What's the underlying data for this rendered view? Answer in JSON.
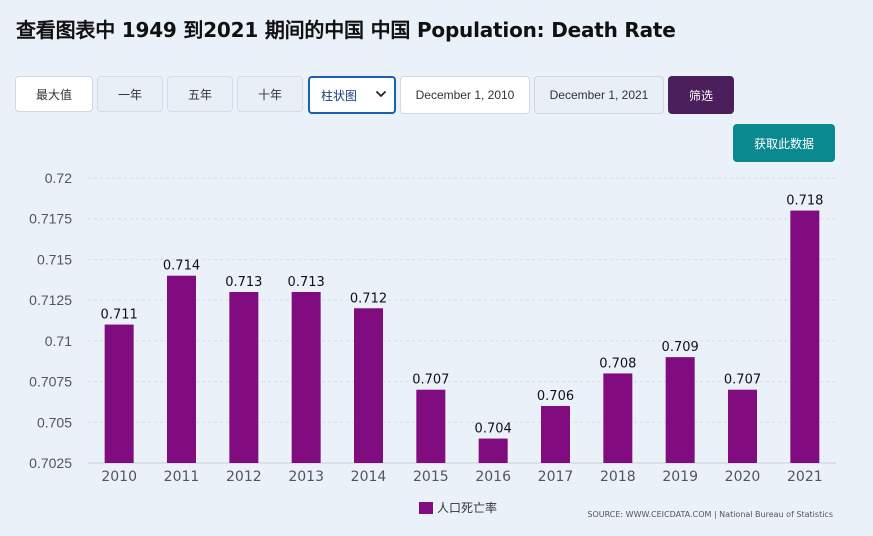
{
  "title": "查看图表中 1949 到2021 期间的中国 中国 Population: Death Rate",
  "toolbar": {
    "range_buttons": [
      "最大值",
      "一年",
      "五年",
      "十年"
    ],
    "chart_type": "柱状图",
    "start_date": "December 1, 2010",
    "end_date": "December 1, 2021",
    "filter_label": "筛选",
    "get_data_label": "获取此数据"
  },
  "legend_label": "人口死亡率",
  "source": "SOURCE: WWW.CEICDATA.COM | National Bureau of Statistics",
  "colors": {
    "bar": "#800c80",
    "filter": "#4a1f5c",
    "get_data": "#0a8a8f",
    "select_border": "#1b5fb5"
  },
  "chart_data": {
    "type": "bar",
    "categories": [
      "2010",
      "2011",
      "2012",
      "2013",
      "2014",
      "2015",
      "2016",
      "2017",
      "2018",
      "2019",
      "2020",
      "2021"
    ],
    "series": [
      {
        "name": "人口死亡率",
        "values": [
          0.711,
          0.714,
          0.713,
          0.713,
          0.712,
          0.707,
          0.704,
          0.706,
          0.708,
          0.709,
          0.707,
          0.718
        ]
      }
    ],
    "ylim": [
      0.7025,
      0.72
    ],
    "yticks": [
      "0.7025",
      "0.705",
      "0.7075",
      "0.71",
      "0.7125",
      "0.715",
      "0.7175",
      "0.72"
    ],
    "grid": true,
    "legend": "bottom-center"
  }
}
